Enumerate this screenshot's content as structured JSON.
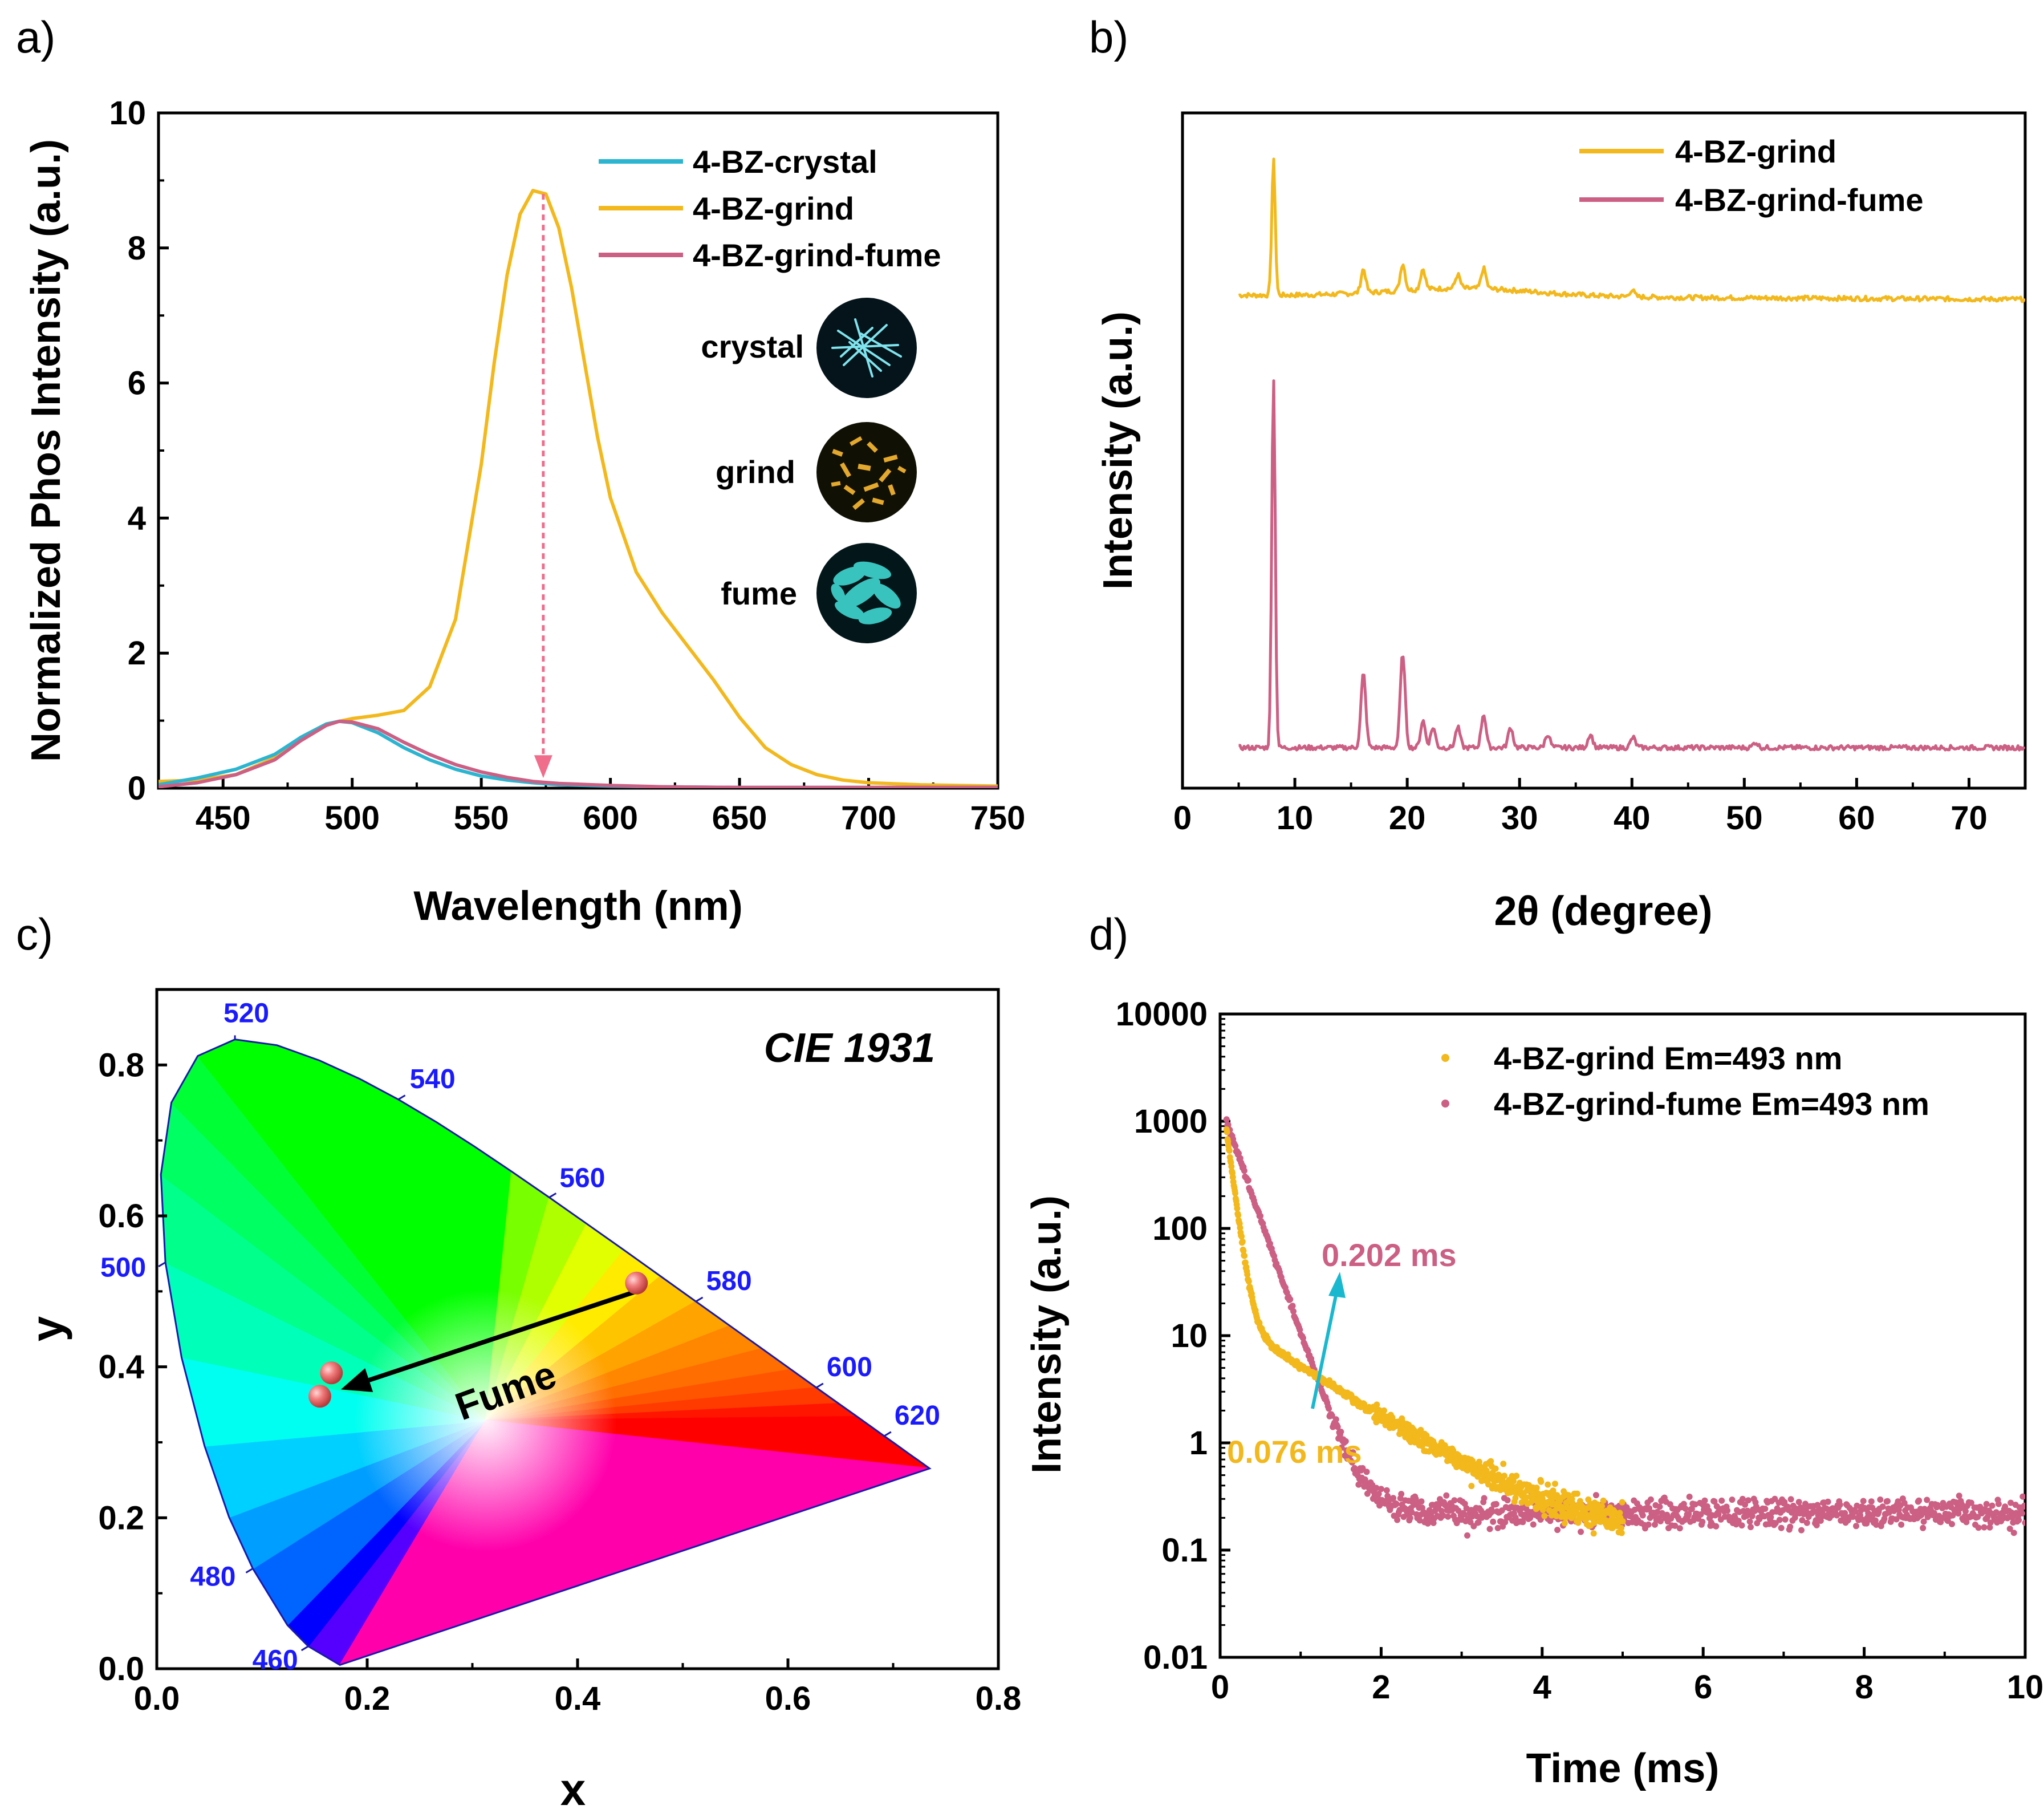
{
  "colors": {
    "crystal": "#2bb5d0",
    "grind": "#f2b81c",
    "fume": "#cc5f84",
    "wavelength_label": "#1a1aff",
    "arrow_cyan": "#1ab8cf"
  },
  "chart_data": [
    {
      "panel": "a)",
      "type": "line",
      "xlabel": "Wavelength (nm)",
      "ylabel": "Normalized Phos Intensity (a.u.)",
      "xlim": [
        425,
        750
      ],
      "ylim": [
        0,
        10
      ],
      "xticks": [
        "450",
        "500",
        "550",
        "600",
        "650",
        "700",
        "750"
      ],
      "yticks": [
        "0",
        "2",
        "4",
        "6",
        "8",
        "10"
      ],
      "legend_position": "top-right",
      "series": [
        {
          "name": "4-BZ-crystal",
          "x": [
            425,
            440,
            455,
            470,
            480,
            490,
            495,
            500,
            510,
            520,
            530,
            540,
            550,
            560,
            570,
            580,
            600,
            620,
            650,
            700,
            750
          ],
          "y": [
            0.05,
            0.15,
            0.28,
            0.5,
            0.75,
            0.95,
            0.99,
            0.97,
            0.82,
            0.6,
            0.42,
            0.28,
            0.18,
            0.12,
            0.08,
            0.05,
            0.03,
            0.02,
            0.01,
            0.01,
            0.01
          ]
        },
        {
          "name": "4-BZ-grind",
          "x": [
            425,
            440,
            455,
            470,
            480,
            490,
            500,
            510,
            520,
            530,
            540,
            550,
            555,
            560,
            565,
            570,
            575,
            580,
            585,
            590,
            595,
            600,
            610,
            620,
            630,
            640,
            650,
            660,
            670,
            680,
            690,
            700,
            720,
            750
          ],
          "y": [
            0.1,
            0.12,
            0.2,
            0.45,
            0.75,
            0.95,
            1.03,
            1.08,
            1.15,
            1.5,
            2.5,
            4.8,
            6.3,
            7.6,
            8.5,
            8.85,
            8.8,
            8.3,
            7.4,
            6.3,
            5.2,
            4.3,
            3.2,
            2.6,
            2.1,
            1.6,
            1.05,
            0.6,
            0.35,
            0.2,
            0.12,
            0.08,
            0.05,
            0.03
          ]
        },
        {
          "name": "4-BZ-grind-fume",
          "x": [
            425,
            440,
            455,
            470,
            480,
            490,
            495,
            500,
            510,
            520,
            530,
            540,
            550,
            560,
            570,
            580,
            600,
            620,
            650,
            700,
            750
          ],
          "y": [
            0.02,
            0.08,
            0.2,
            0.42,
            0.7,
            0.93,
            0.99,
            0.98,
            0.88,
            0.68,
            0.5,
            0.35,
            0.24,
            0.16,
            0.1,
            0.07,
            0.04,
            0.02,
            0.01,
            0.01,
            0.01
          ]
        }
      ],
      "annotations": [
        {
          "type": "dashed-arrow",
          "x": 574,
          "y_from": 8.8,
          "y_to": 0.15
        }
      ],
      "inset": {
        "labels": [
          "crystal",
          "grind",
          "fume"
        ]
      }
    },
    {
      "panel": "b)",
      "type": "line",
      "xlabel": "2θ (degree)",
      "ylabel": "Intensity (a.u.)",
      "xlim": [
        0,
        75
      ],
      "xticks": [
        "0",
        "10",
        "20",
        "30",
        "40",
        "50",
        "60",
        "70"
      ],
      "legend_position": "top-right",
      "series": [
        {
          "name": "4-BZ-grind",
          "baseline": 0.73,
          "peaks": [
            [
              8.1,
              0.2
            ],
            [
              16.1,
              0.035
            ],
            [
              19.6,
              0.04
            ],
            [
              21.4,
              0.03
            ],
            [
              24.5,
              0.02
            ],
            [
              26.8,
              0.03
            ],
            [
              40,
              0.01
            ]
          ]
        },
        {
          "name": "4-BZ-grind-fume",
          "baseline": 0.06,
          "peaks": [
            [
              8.1,
              0.55
            ],
            [
              16.1,
              0.11
            ],
            [
              19.6,
              0.14
            ],
            [
              21.4,
              0.04
            ],
            [
              22.3,
              0.03
            ],
            [
              24.5,
              0.03
            ],
            [
              26.8,
              0.05
            ],
            [
              29.2,
              0.03
            ],
            [
              32.5,
              0.02
            ],
            [
              36.3,
              0.02
            ],
            [
              40.1,
              0.015
            ],
            [
              51,
              0.008
            ]
          ]
        }
      ]
    },
    {
      "panel": "c)",
      "type": "scatter",
      "title": "CIE 1931",
      "xlabel": "x",
      "ylabel": "y",
      "xlim": [
        0,
        0.8
      ],
      "ylim": [
        0,
        0.9
      ],
      "xticks": [
        "0.0",
        "0.2",
        "0.4",
        "0.6",
        "0.8"
      ],
      "yticks": [
        "0.0",
        "0.2",
        "0.4",
        "0.6",
        "0.8"
      ],
      "locus": [
        [
          0.1741,
          0.005
        ],
        [
          0.144,
          0.0297
        ],
        [
          0.1241,
          0.0578
        ],
        [
          0.0913,
          0.1327
        ],
        [
          0.0687,
          0.2007
        ],
        [
          0.0454,
          0.295
        ],
        [
          0.0235,
          0.4127
        ],
        [
          0.0082,
          0.5384
        ],
        [
          0.0039,
          0.6548
        ],
        [
          0.0139,
          0.7502
        ],
        [
          0.0389,
          0.812
        ],
        [
          0.0743,
          0.8338
        ],
        [
          0.1142,
          0.8262
        ],
        [
          0.1547,
          0.8059
        ],
        [
          0.1929,
          0.7816
        ],
        [
          0.2296,
          0.7543
        ],
        [
          0.2658,
          0.7243
        ],
        [
          0.3016,
          0.6923
        ],
        [
          0.3373,
          0.6589
        ],
        [
          0.3731,
          0.6245
        ],
        [
          0.4087,
          0.5896
        ],
        [
          0.4441,
          0.5547
        ],
        [
          0.4788,
          0.5202
        ],
        [
          0.5125,
          0.4866
        ],
        [
          0.5448,
          0.4544
        ],
        [
          0.5752,
          0.4242
        ],
        [
          0.6029,
          0.3965
        ],
        [
          0.627,
          0.3725
        ],
        [
          0.6482,
          0.3514
        ],
        [
          0.6658,
          0.334
        ],
        [
          0.6801,
          0.3197
        ],
        [
          0.6915,
          0.3083
        ],
        [
          0.7006,
          0.2993
        ],
        [
          0.7079,
          0.292
        ],
        [
          0.714,
          0.2859
        ],
        [
          0.719,
          0.2809
        ],
        [
          0.723,
          0.277
        ],
        [
          0.726,
          0.274
        ],
        [
          0.7347,
          0.2653
        ]
      ],
      "wavelength_labels": [
        {
          "text": "460",
          "x": 0.144,
          "y": 0.0297
        },
        {
          "text": "480",
          "x": 0.0913,
          "y": 0.1327
        },
        {
          "text": "500",
          "x": 0.0082,
          "y": 0.5384
        },
        {
          "text": "520",
          "x": 0.0743,
          "y": 0.8338
        },
        {
          "text": "540",
          "x": 0.2296,
          "y": 0.7543
        },
        {
          "text": "560",
          "x": 0.3731,
          "y": 0.6245
        },
        {
          "text": "580",
          "x": 0.5125,
          "y": 0.4866
        },
        {
          "text": "600",
          "x": 0.627,
          "y": 0.3725
        },
        {
          "text": "620",
          "x": 0.6915,
          "y": 0.3083
        }
      ],
      "points": [
        [
          0.456,
          0.511
        ],
        [
          0.166,
          0.392
        ],
        [
          0.155,
          0.361
        ]
      ],
      "arrow": {
        "label": "Fume",
        "from": [
          0.456,
          0.5
        ],
        "to": [
          0.175,
          0.37
        ]
      }
    },
    {
      "panel": "d)",
      "type": "scatter",
      "xlabel": "Time (ms)",
      "ylabel": "Intensity (a.u.)",
      "xlim": [
        0,
        10
      ],
      "ylim": [
        0.01,
        10000
      ],
      "yscale": "log",
      "xticks": [
        "0",
        "2",
        "4",
        "6",
        "8",
        "10"
      ],
      "yticks": [
        "0.01",
        "0.1",
        "1",
        "10",
        "100",
        "1000",
        "10000"
      ],
      "legend_position": "top-right",
      "series": [
        {
          "name": "4-BZ-grind Em=493 nm",
          "fast_amp": 800,
          "fast_tau": 0.076,
          "mid_amp": 14,
          "mid_tau": 0.9,
          "floor": 0.12,
          "t_end": 5.0
        },
        {
          "name": "4-BZ-grind-fume Em=493 nm",
          "fast_amp": 1000,
          "fast_tau": 0.202,
          "mid_amp": 0,
          "mid_tau": 1,
          "floor": 0.22,
          "t_end": 10.0
        }
      ],
      "annotations": [
        {
          "text": "0.202 ms",
          "color": "fume"
        },
        {
          "text": "0.076 ms",
          "color": "grind"
        }
      ]
    }
  ]
}
